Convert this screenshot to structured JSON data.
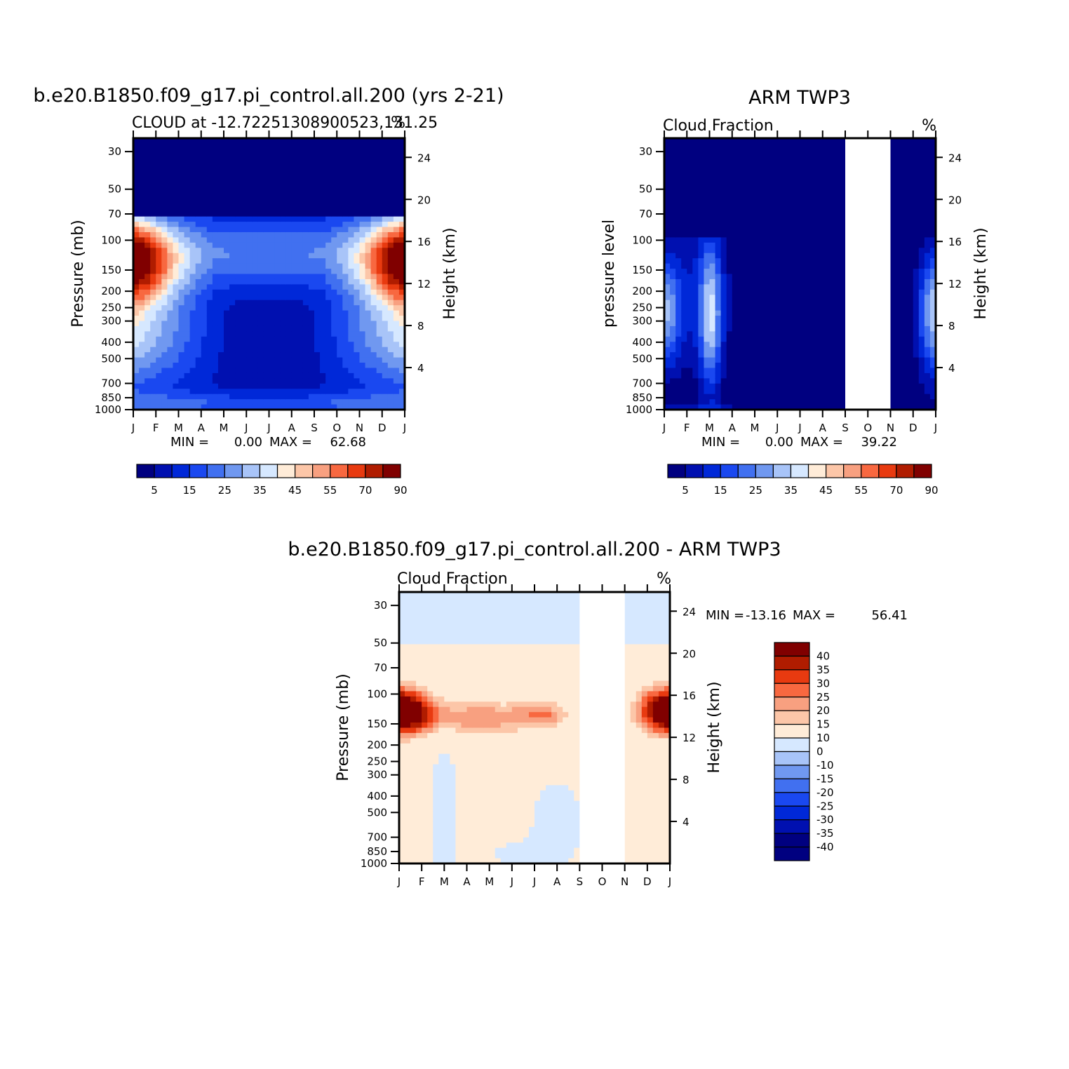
{
  "palette": {
    "seq": [
      "#000080",
      "#0010b0",
      "#0028d8",
      "#1a48f0",
      "#4170f0",
      "#7098f0",
      "#a8c4f8",
      "#d6e8ff",
      "#ffecd8",
      "#fcc6a8",
      "#f8a080",
      "#f86840",
      "#e83a10",
      "#b01c00",
      "#800000"
    ],
    "diff": [
      "#000080",
      "#0010b0",
      "#0028d8",
      "#1a48f0",
      "#4170f0",
      "#7098f0",
      "#a8c4f8",
      "#d6e8ff",
      "#ffecd8",
      "#fcc6a8",
      "#f8a080",
      "#f86840",
      "#e83a10",
      "#b01c00",
      "#800000"
    ]
  },
  "chart_data": [
    {
      "type": "heatmap",
      "title": "b.e20.B1850.f09_g17.pi_control.all.200  (yrs 2-21)",
      "subtitle_left": "CLOUD at -12.72251308900523,131.25",
      "subtitle_right": "%",
      "ylabel": "Pressure (mb)",
      "ylabel_right": "Height (km)",
      "x_ticks": [
        "J",
        "F",
        "M",
        "A",
        "M",
        "J",
        "J",
        "A",
        "S",
        "O",
        "N",
        "D",
        "J"
      ],
      "y_ticks": [
        "30",
        "50",
        "70",
        "100",
        "150",
        "200",
        "250",
        "300",
        "400",
        "500",
        "700",
        "850",
        "1000"
      ],
      "y_ticks_right": [
        "24",
        "20",
        "16",
        "12",
        "8",
        "4"
      ],
      "y_scale": "log",
      "ylim": [
        1000,
        25
      ],
      "min_label": "MIN =",
      "min_value": "0.00",
      "max_label": "MAX =",
      "max_value": "62.68",
      "colorbar_labels": [
        "5",
        "15",
        "25",
        "35",
        "45",
        "55",
        "70",
        "90"
      ],
      "levels": [
        5,
        10,
        15,
        20,
        25,
        30,
        35,
        40,
        45,
        50,
        55,
        60,
        70,
        80,
        90
      ]
    },
    {
      "type": "heatmap",
      "title": "ARM TWP3",
      "subtitle_left": "Cloud Fraction",
      "subtitle_right": "%",
      "ylabel": "pressure level",
      "ylabel_right": "Height (km)",
      "x_ticks": [
        "J",
        "F",
        "M",
        "A",
        "M",
        "J",
        "J",
        "A",
        "S",
        "O",
        "N",
        "D",
        "J"
      ],
      "y_ticks": [
        "30",
        "50",
        "70",
        "100",
        "150",
        "200",
        "250",
        "300",
        "400",
        "500",
        "700",
        "850",
        "1000"
      ],
      "y_ticks_right": [
        "24",
        "20",
        "16",
        "12",
        "8",
        "4"
      ],
      "y_scale": "log",
      "ylim": [
        1000,
        25
      ],
      "min_label": "MIN =",
      "min_value": "0.00",
      "max_label": "MAX =",
      "max_value": "39.22",
      "colorbar_labels": [
        "5",
        "15",
        "25",
        "35",
        "45",
        "55",
        "70",
        "90"
      ],
      "levels": [
        5,
        10,
        15,
        20,
        25,
        30,
        35,
        40,
        45,
        50,
        55,
        60,
        70,
        80,
        90
      ],
      "missing_months": [
        "S",
        "O",
        "N"
      ]
    },
    {
      "type": "heatmap",
      "title": "b.e20.B1850.f09_g17.pi_control.all.200 - ARM TWP3",
      "subtitle_left": "Cloud Fraction",
      "subtitle_right": "%",
      "ylabel": "Pressure (mb)",
      "ylabel_right": "Height (km)",
      "x_ticks": [
        "J",
        "F",
        "M",
        "A",
        "M",
        "J",
        "J",
        "A",
        "S",
        "O",
        "N",
        "D",
        "J"
      ],
      "y_ticks": [
        "30",
        "50",
        "70",
        "100",
        "150",
        "200",
        "250",
        "300",
        "400",
        "500",
        "700",
        "850",
        "1000"
      ],
      "y_ticks_right": [
        "24",
        "20",
        "16",
        "12",
        "8",
        "4"
      ],
      "y_scale": "log",
      "ylim": [
        1000,
        25
      ],
      "min_label": "MIN =",
      "min_value": "-13.16",
      "max_label": "MAX =",
      "max_value": "56.41",
      "colorbar_labels": [
        "40",
        "35",
        "30",
        "25",
        "20",
        "15",
        "10",
        "0",
        "-10",
        "-15",
        "-20",
        "-25",
        "-30",
        "-35",
        "-40"
      ],
      "levels": [
        -40,
        -35,
        -30,
        -25,
        -20,
        -15,
        -10,
        0,
        10,
        15,
        20,
        25,
        30,
        35,
        40
      ],
      "missing_months": [
        "S",
        "O",
        "N"
      ]
    }
  ]
}
